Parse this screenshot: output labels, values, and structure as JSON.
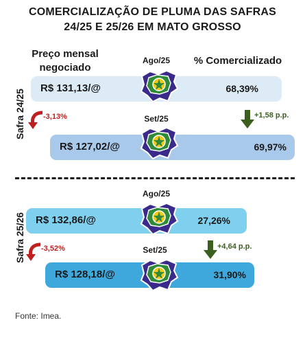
{
  "title_line1": "COMERCIALIZAÇÃO DE PLUMA DAS SAFRAS",
  "title_line2": "24/25 E 25/26 EM MATO GROSSO",
  "header_price": "Preço mensal negociado",
  "header_pct": "% Comercializado",
  "source": "Fonte: Imea.",
  "colors": {
    "bar_2425_aug": "#dcebf6",
    "bar_2425_sep": "#a9c9ea",
    "bar_2526_aug": "#7fd0ee",
    "bar_2526_sep": "#3ea8dc",
    "map_purple": "#3a2a8c",
    "map_green": "#2f8b3a",
    "map_yellow": "#f2c814",
    "neg_arrow": "#c01f1f",
    "pos_arrow": "#3c5f1e"
  },
  "chart_data": {
    "type": "table",
    "seasons": [
      {
        "label": "Safra 24/25",
        "rows": [
          {
            "month": "Ago/25",
            "price": "R$ 131,13/@",
            "pct": "68,39%"
          },
          {
            "month": "Set/25",
            "price": "R$ 127,02/@",
            "pct": "69,97%"
          }
        ],
        "price_change": "-3,13%",
        "pct_change": "+1,58 p.p."
      },
      {
        "label": "Safra 25/26",
        "rows": [
          {
            "month": "Ago/25",
            "price": "R$ 132,86/@",
            "pct": "27,26%"
          },
          {
            "month": "Set/25",
            "price": "R$ 128,18/@",
            "pct": "31,90%"
          }
        ],
        "price_change": "-3,52%",
        "pct_change": "+4,64 p.p."
      }
    ]
  }
}
